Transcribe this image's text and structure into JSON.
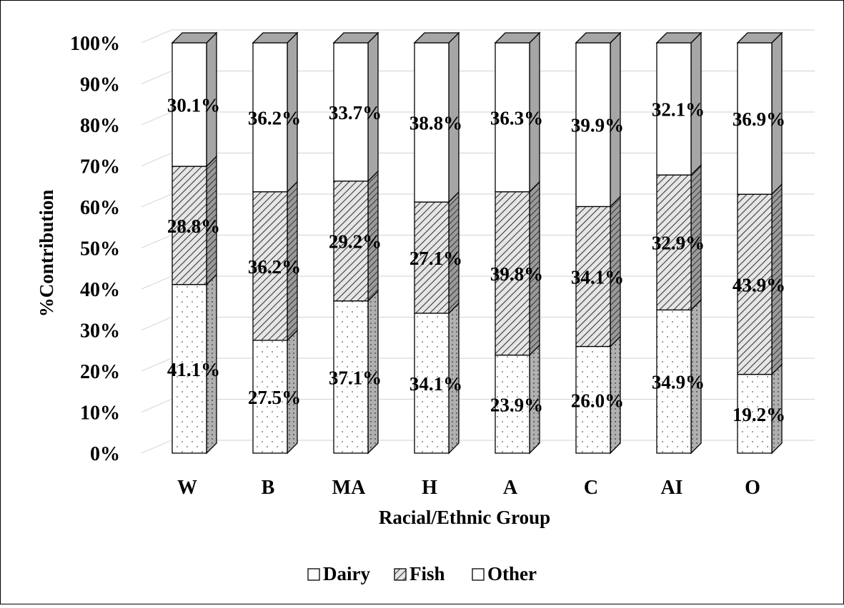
{
  "chart_data": {
    "type": "bar",
    "stacked": "percent",
    "categories": [
      "W",
      "B",
      "MA",
      "H",
      "A",
      "C",
      "AI",
      "O"
    ],
    "series": [
      {
        "name": "Dairy",
        "values": [
          41.1,
          27.5,
          37.1,
          34.1,
          23.9,
          26.0,
          34.9,
          19.2
        ],
        "labels": [
          "41.1%",
          "27.5%",
          "37.1%",
          "34.1%",
          "23.9%",
          "26.0%",
          "34.9%",
          "19.2%"
        ]
      },
      {
        "name": "Fish",
        "values": [
          28.8,
          36.2,
          29.2,
          27.1,
          39.8,
          34.1,
          32.9,
          43.9
        ],
        "labels": [
          "28.8%",
          "36.2%",
          "29.2%",
          "27.1%",
          "39.8%",
          "34.1%",
          "32.9%",
          "43.9%"
        ]
      },
      {
        "name": "Other",
        "values": [
          30.1,
          36.2,
          33.7,
          38.8,
          36.3,
          39.9,
          32.1,
          36.9
        ],
        "labels": [
          "30.1%",
          "36.2%",
          "33.7%",
          "38.8%",
          "36.3%",
          "39.9%",
          "32.1%",
          "36.9%"
        ]
      }
    ],
    "xlabel": "Racial/Ethnic Group",
    "ylabel": "%Contribution",
    "ylim": [
      0,
      100
    ],
    "yticks": [
      "0%",
      "10%",
      "20%",
      "30%",
      "40%",
      "50%",
      "60%",
      "70%",
      "80%",
      "90%",
      "100%"
    ],
    "grid": true,
    "legend": "bottom",
    "style": "3d-column",
    "colors": {
      "face": "#ffffff",
      "side": "#a6a6a6",
      "edge": "#000000",
      "grid": "#d9d9d9"
    }
  }
}
